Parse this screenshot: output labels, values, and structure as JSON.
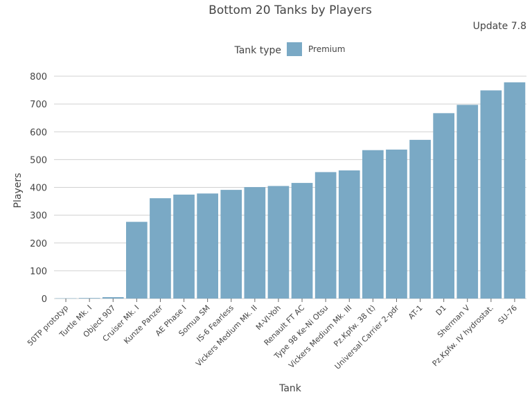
{
  "chart_data": {
    "type": "bar",
    "title": "Bottom 20 Tanks by Players",
    "subtitle": "Update 7.8",
    "xlabel": "Tank",
    "ylabel": "Players",
    "ylim": [
      0,
      800
    ],
    "yticks": [
      0,
      100,
      200,
      300,
      400,
      500,
      600,
      700,
      800
    ],
    "grid": true,
    "legend": {
      "title": "Tank type",
      "placement": "top-center",
      "entries": [
        {
          "name": "Premium",
          "color": "#7aa9c5"
        }
      ]
    },
    "bar_color": "#7aa9c5",
    "categories": [
      "50TP prototyp",
      "Turtle Mk. I",
      "Object 907",
      "Cruiser Mk. I",
      "Kunze Panzer",
      "AE Phase I",
      "Somua SM",
      "IS-6 Fearless",
      "Vickers Medium Mk. II",
      "M-VI-Yoh",
      "Renault FT AC",
      "Type 98 Ke-Ni Otsu",
      "Vickers Medium Mk. III",
      "Pz.Kpfw. 38 (t)",
      "Universal Carrier 2-pdr",
      "AT-1",
      "D1",
      "Sherman V",
      "Pz.Kpfw. IV hydrostat.",
      "SU-76"
    ],
    "series": [
      {
        "values": [
          1,
          2,
          5,
          276,
          361,
          374,
          378,
          391,
          401,
          405,
          416,
          455,
          461,
          534,
          536,
          571,
          667,
          697,
          749,
          778
        ]
      }
    ]
  }
}
